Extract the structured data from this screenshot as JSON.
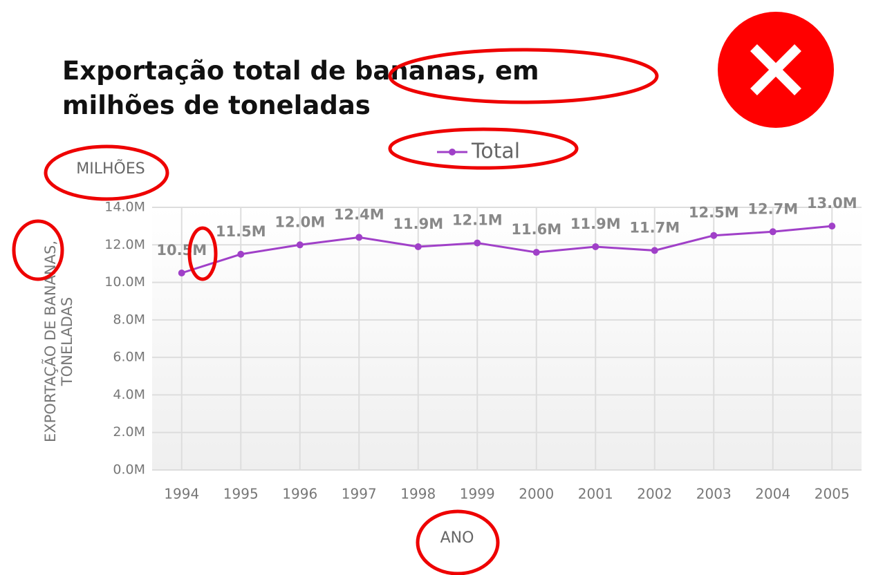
{
  "chart_data": {
    "type": "line",
    "title": "Exportação total de bananas, em milhões de toneladas",
    "unit_label": "MILHÕES",
    "y_label": "EXPORTAÇÃO DE BANANAS, TONELADAS",
    "x_label": "ANO",
    "categories": [
      "1994",
      "1995",
      "1996",
      "1997",
      "1998",
      "1999",
      "2000",
      "2001",
      "2002",
      "2003",
      "2004",
      "2005"
    ],
    "series": [
      {
        "name": "Total",
        "color": "#a040c8",
        "values": [
          10500000,
          11500000,
          12000000,
          12400000,
          11900000,
          12100000,
          11600000,
          11900000,
          11700000,
          12500000,
          12700000,
          13000000
        ],
        "value_labels": [
          "10.5M",
          "11.5M",
          "12.0M",
          "12.4M",
          "11.9M",
          "12.1M",
          "11.6M",
          "11.9M",
          "11.7M",
          "12.5M",
          "12.7M",
          "13.0M"
        ]
      }
    ],
    "ylim": [
      0,
      14000000
    ],
    "yticks": [
      {
        "value": 0,
        "label": "0.0M"
      },
      {
        "value": 2000000,
        "label": "2.0M"
      },
      {
        "value": 4000000,
        "label": "4.0M"
      },
      {
        "value": 6000000,
        "label": "6.0M"
      },
      {
        "value": 8000000,
        "label": "8.0M"
      },
      {
        "value": 10000000,
        "label": "10.0M"
      },
      {
        "value": 12000000,
        "label": "12.0M"
      },
      {
        "value": 14000000,
        "label": "14.0M"
      }
    ],
    "grid": true
  }
}
